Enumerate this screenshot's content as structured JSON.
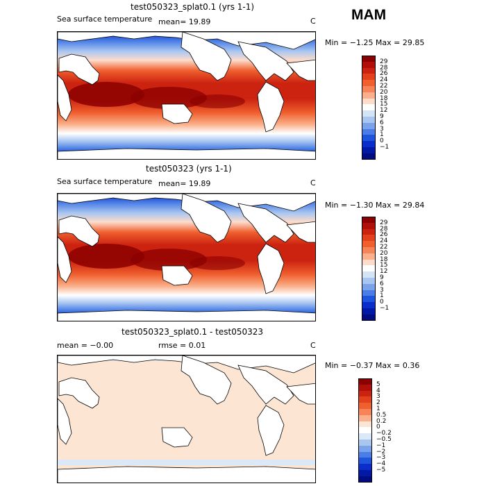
{
  "season": "MAM",
  "panels": [
    {
      "title": "test050323_splat0.1 (yrs 1-1)",
      "variable": "Sea surface temperature",
      "stat1": "mean=   19.89",
      "stat2": "",
      "units": "C",
      "minmax": "Min =  −1.25  Max =   29.85",
      "colorbar_labels": [
        "29",
        "28",
        "26",
        "24",
        "22",
        "20",
        "18",
        "15",
        "12",
        "9",
        "6",
        "3",
        "1",
        "0",
        "−1"
      ],
      "colors": [
        "#8b0000",
        "#b00f0a",
        "#cc2210",
        "#e3401c",
        "#f0602f",
        "#f78458",
        "#fab08a",
        "#fddccb",
        "#ffffff",
        "#d4e4f7",
        "#a9c6f1",
        "#7aa3ec",
        "#4a7ee6",
        "#1f55dc",
        "#0a2dcc",
        "#001aa6",
        "#000c80"
      ]
    },
    {
      "title": "test050323 (yrs 1-1)",
      "variable": "Sea surface temperature",
      "stat1": "mean=   19.89",
      "stat2": "",
      "units": "C",
      "minmax": "Min =  −1.30  Max =   29.84",
      "colorbar_labels": [
        "29",
        "28",
        "26",
        "24",
        "22",
        "20",
        "18",
        "15",
        "12",
        "9",
        "6",
        "3",
        "1",
        "0",
        "−1"
      ],
      "colors": [
        "#8b0000",
        "#b00f0a",
        "#cc2210",
        "#e3401c",
        "#f0602f",
        "#f78458",
        "#fab08a",
        "#fddccb",
        "#ffffff",
        "#d4e4f7",
        "#a9c6f1",
        "#7aa3ec",
        "#4a7ee6",
        "#1f55dc",
        "#0a2dcc",
        "#001aa6",
        "#000c80"
      ]
    },
    {
      "title": "test050323_splat0.1 - test050323",
      "variable": "",
      "stat1": "mean =   −0.00",
      "stat2": "rmse =    0.01",
      "units": "C",
      "minmax": "Min =  −0.37  Max =    0.36",
      "colorbar_labels": [
        "5",
        "4",
        "3",
        "2",
        "1",
        "0.5",
        "0.2",
        "0",
        "−0.2",
        "−0.5",
        "−1",
        "−2",
        "−3",
        "−4",
        "−5"
      ],
      "colors": [
        "#8b0000",
        "#b00f0a",
        "#cc2210",
        "#e3401c",
        "#f0602f",
        "#f78458",
        "#fab08a",
        "#fde5d3",
        "#ffffff",
        "#dbe8f8",
        "#a9c6f1",
        "#7aa3ec",
        "#4a7ee6",
        "#1f55dc",
        "#0a2dcc",
        "#001aa6",
        "#000c80"
      ]
    }
  ]
}
